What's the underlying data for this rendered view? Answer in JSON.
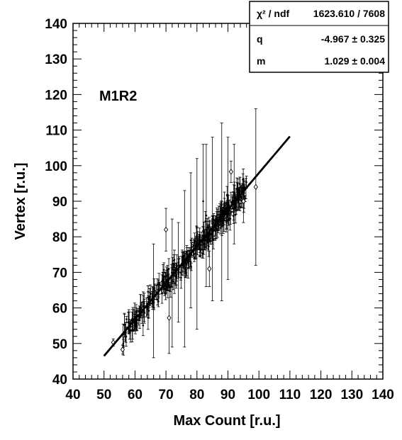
{
  "chart_data": {
    "type": "scatter",
    "title": "",
    "xlabel": "Max Count [r.u.]",
    "ylabel": "Vertex [r.u.]",
    "xlim": [
      40,
      140
    ],
    "ylim": [
      40,
      140
    ],
    "xticks": [
      "40",
      "50",
      "60",
      "70",
      "80",
      "90",
      "100",
      "110",
      "120",
      "130",
      "140"
    ],
    "yticks": [
      "40",
      "50",
      "60",
      "70",
      "80",
      "90",
      "100",
      "110",
      "120",
      "130",
      "140"
    ],
    "annotation": "M1R2",
    "grid": false,
    "stats_box": {
      "rows": [
        {
          "label": "χ² / ndf",
          "value": "1623.610 / 7608"
        },
        {
          "label": "q",
          "value": "-4.967 ± 0.325"
        },
        {
          "label": "m",
          "value": "1.029 ± 0.004"
        }
      ]
    },
    "fit_line": {
      "q": -4.967,
      "m": 1.029,
      "x_range": [
        50,
        110
      ]
    },
    "highlighted_points": [
      {
        "x": 53,
        "y": 50.3,
        "err": 1.0
      },
      {
        "x": 56,
        "y": 48.3,
        "err": 1.3
      },
      {
        "x": 70,
        "y": 82,
        "err": 6
      },
      {
        "x": 71,
        "y": 57.2,
        "err": 10
      },
      {
        "x": 84,
        "y": 71,
        "err": 5
      },
      {
        "x": 91,
        "y": 98.3,
        "err": 3
      },
      {
        "x": 95,
        "y": 90,
        "err": 6
      },
      {
        "x": 99,
        "y": 94,
        "err": 22
      }
    ],
    "dense_band": {
      "x_range": [
        56,
        96
      ],
      "n_points": 380,
      "spread": 2.5
    },
    "long_error_bars": [
      {
        "x": 66,
        "y": 62,
        "err": 16
      },
      {
        "x": 72,
        "y": 67,
        "err": 18
      },
      {
        "x": 76,
        "y": 71,
        "err": 22
      },
      {
        "x": 80,
        "y": 78,
        "err": 24
      },
      {
        "x": 82,
        "y": 90,
        "err": 16
      },
      {
        "x": 83,
        "y": 86,
        "err": 20
      },
      {
        "x": 85,
        "y": 85,
        "err": 23
      },
      {
        "x": 88,
        "y": 87,
        "err": 25
      },
      {
        "x": 90,
        "y": 88,
        "err": 20
      },
      {
        "x": 92,
        "y": 92,
        "err": 14
      },
      {
        "x": 78,
        "y": 79,
        "err": 19
      },
      {
        "x": 74,
        "y": 70,
        "err": 14
      }
    ]
  }
}
